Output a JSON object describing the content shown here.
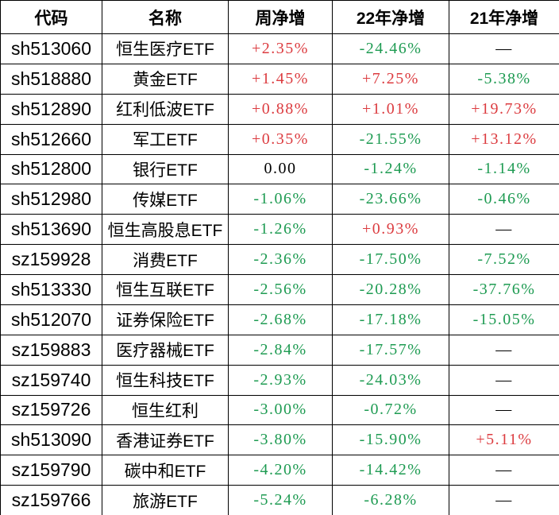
{
  "chart_data": {
    "type": "table",
    "columns": [
      "代码",
      "名称",
      "周净增",
      "22年净增",
      "21年净增"
    ],
    "rows": [
      {
        "code": "sh513060",
        "name": "恒生医疗ETF",
        "week": "+2.35%",
        "y22": "-24.46%",
        "y21": "—"
      },
      {
        "code": "sh518880",
        "name": "黄金ETF",
        "week": "+1.45%",
        "y22": "+7.25%",
        "y21": "-5.38%"
      },
      {
        "code": "sh512890",
        "name": "红利低波ETF",
        "week": "+0.88%",
        "y22": "+1.01%",
        "y21": "+19.73%"
      },
      {
        "code": "sh512660",
        "name": "军工ETF",
        "week": "+0.35%",
        "y22": "-21.55%",
        "y21": "+13.12%"
      },
      {
        "code": "sh512800",
        "name": "银行ETF",
        "week": "0.00",
        "y22": "-1.24%",
        "y21": "-1.14%"
      },
      {
        "code": "sh512980",
        "name": "传媒ETF",
        "week": "-1.06%",
        "y22": "-23.66%",
        "y21": "-0.46%"
      },
      {
        "code": "sh513690",
        "name": "恒生高股息ETF",
        "week": "-1.26%",
        "y22": "+0.93%",
        "y21": "—"
      },
      {
        "code": "sz159928",
        "name": "消费ETF",
        "week": "-2.36%",
        "y22": "-17.50%",
        "y21": "-7.52%"
      },
      {
        "code": "sh513330",
        "name": "恒生互联ETF",
        "week": "-2.56%",
        "y22": "-20.28%",
        "y21": "-37.76%"
      },
      {
        "code": "sh512070",
        "name": "证券保险ETF",
        "week": "-2.68%",
        "y22": "-17.18%",
        "y21": "-15.05%"
      },
      {
        "code": "sz159883",
        "name": "医疗器械ETF",
        "week": "-2.84%",
        "y22": "-17.57%",
        "y21": "—"
      },
      {
        "code": "sz159740",
        "name": "恒生科技ETF",
        "week": "-2.93%",
        "y22": "-24.03%",
        "y21": "—"
      },
      {
        "code": "sz159726",
        "name": "恒生红利",
        "week": "-3.00%",
        "y22": "-0.72%",
        "y21": "—"
      },
      {
        "code": "sh513090",
        "name": "香港证券ETF",
        "week": "-3.80%",
        "y22": "-15.90%",
        "y21": "+5.11%"
      },
      {
        "code": "sz159790",
        "name": "碳中和ETF",
        "week": "-4.20%",
        "y22": "-14.42%",
        "y21": "—"
      },
      {
        "code": "sz159766",
        "name": "旅游ETF",
        "week": "-5.24%",
        "y22": "-6.28%",
        "y21": "—"
      }
    ],
    "colors": {
      "positive": "#dc3c40",
      "negative": "#1e9b52",
      "neutral": "#000000",
      "border": "#000000",
      "background": "#ffffff"
    },
    "layout": {
      "grid": true,
      "legend": "none"
    }
  }
}
